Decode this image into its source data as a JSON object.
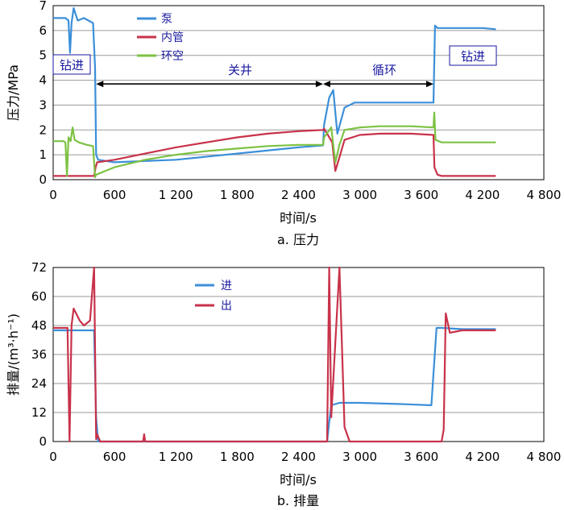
{
  "chart_data": [
    {
      "type": "line",
      "ylabel": "压力/MPa",
      "xlabel": "时间/s",
      "caption": "a. 压力",
      "xlim": [
        0,
        4800
      ],
      "ylim": [
        0,
        7
      ],
      "x_ticks": [
        0,
        600,
        1200,
        1800,
        2400,
        3000,
        3600,
        4200,
        4800
      ],
      "x_tick_labels": [
        "0",
        "600",
        "1 200",
        "1 800",
        "2 400",
        "3 000",
        "3 600",
        "4 200",
        "4 800"
      ],
      "y_ticks": [
        0,
        1,
        2,
        3,
        4,
        5,
        6,
        7
      ],
      "y_tick_labels": [
        "0",
        "1",
        "2",
        "3",
        "4",
        "5",
        "6",
        "7"
      ],
      "legend": {
        "position": "top-left"
      },
      "series": [
        {
          "name": "泵",
          "color": "#3b8fd9",
          "x": [
            0,
            120,
            150,
            165,
            180,
            200,
            240,
            300,
            390,
            410,
            420,
            440,
            600,
            1200,
            1800,
            2400,
            2640,
            2650,
            2700,
            2740,
            2780,
            2850,
            2950,
            3200,
            3500,
            3720,
            3735,
            3760,
            3800,
            4000,
            4200,
            4330
          ],
          "y": [
            6.5,
            6.5,
            6.4,
            5.1,
            6.3,
            6.9,
            6.4,
            6.5,
            6.3,
            4.5,
            1.0,
            0.8,
            0.7,
            0.8,
            1.05,
            1.3,
            1.38,
            2.2,
            3.3,
            3.6,
            1.85,
            2.9,
            3.1,
            3.1,
            3.1,
            3.1,
            6.2,
            6.1,
            6.1,
            6.1,
            6.1,
            6.05
          ]
        },
        {
          "name": "内管",
          "color": "#c8324a",
          "x": [
            0,
            300,
            400,
            415,
            430,
            600,
            900,
            1200,
            1500,
            1800,
            2100,
            2400,
            2640,
            2650,
            2730,
            2760,
            2800,
            2850,
            3000,
            3200,
            3500,
            3720,
            3730,
            3760,
            3800,
            4330
          ],
          "y": [
            0.15,
            0.15,
            0.15,
            0.5,
            0.7,
            0.8,
            1.05,
            1.3,
            1.5,
            1.7,
            1.85,
            1.95,
            2.0,
            2.05,
            1.5,
            0.35,
            0.9,
            1.6,
            1.8,
            1.85,
            1.85,
            1.8,
            0.5,
            0.2,
            0.15,
            0.15
          ]
        },
        {
          "name": "环空",
          "color": "#7dc243",
          "x": [
            0,
            100,
            120,
            135,
            150,
            170,
            190,
            210,
            250,
            330,
            390,
            400,
            410,
            420,
            600,
            900,
            1200,
            1500,
            1800,
            2100,
            2400,
            2640,
            2650,
            2720,
            2760,
            2800,
            2850,
            3000,
            3200,
            3500,
            3720,
            3728,
            3740,
            3800,
            4000,
            4330
          ],
          "y": [
            1.55,
            1.55,
            1.5,
            0.15,
            1.7,
            1.55,
            2.1,
            1.6,
            1.5,
            1.4,
            1.35,
            0.7,
            0.1,
            0.2,
            0.5,
            0.8,
            1.0,
            1.15,
            1.25,
            1.35,
            1.4,
            1.4,
            1.7,
            2.1,
            0.7,
            1.4,
            2.0,
            2.1,
            2.15,
            2.15,
            2.1,
            2.7,
            1.6,
            1.5,
            1.5,
            1.5
          ]
        }
      ],
      "annotations": [
        {
          "type": "boxed-label",
          "text": "钻进"
        },
        {
          "type": "span-arrow",
          "text": "关井",
          "from": 420,
          "to": 2640,
          "y": 3.85
        },
        {
          "type": "span-arrow",
          "text": "循环",
          "from": 2640,
          "to": 3720,
          "y": 3.85
        },
        {
          "type": "boxed-label",
          "text": "钻进"
        }
      ]
    },
    {
      "type": "line",
      "ylabel": "排量/(m³·h⁻¹)",
      "xlabel": "时间/s",
      "caption": "b. 排量",
      "xlim": [
        0,
        4800
      ],
      "ylim": [
        0,
        72
      ],
      "x_ticks": [
        0,
        600,
        1200,
        1800,
        2400,
        3000,
        3600,
        4200,
        4800
      ],
      "x_tick_labels": [
        "0",
        "600",
        "1 200",
        "1 800",
        "2 400",
        "3 000",
        "3 600",
        "4 200",
        "4 800"
      ],
      "y_ticks": [
        0,
        12,
        24,
        36,
        48,
        60,
        72
      ],
      "y_tick_labels": [
        "0",
        "12",
        "24",
        "36",
        "48",
        "60",
        "72"
      ],
      "legend": {
        "position": "top-center"
      },
      "series": [
        {
          "name": "进",
          "color": "#3b8fd9",
          "x": [
            0,
            400,
            420,
            440,
            2680,
            2700,
            2720,
            2800,
            3000,
            3400,
            3700,
            3750,
            3800,
            4000,
            4330
          ],
          "y": [
            46,
            46,
            10,
            0,
            0,
            8,
            15,
            16,
            16,
            15.5,
            15,
            47,
            47,
            46.5,
            46.5
          ]
        },
        {
          "name": "出",
          "color": "#c8324a",
          "x": [
            0,
            140,
            160,
            180,
            200,
            260,
            300,
            360,
            400,
            420,
            430,
            460,
            880,
            890,
            900,
            2680,
            2700,
            2720,
            2800,
            2850,
            2900,
            3800,
            3820,
            3840,
            3880,
            4000,
            4330
          ],
          "y": [
            47,
            47,
            0,
            48,
            55,
            50,
            48,
            50,
            72,
            1,
            3,
            0,
            0,
            3,
            0,
            0,
            72,
            10,
            72,
            6,
            0,
            0,
            5,
            53,
            45,
            46,
            46
          ]
        }
      ]
    }
  ]
}
